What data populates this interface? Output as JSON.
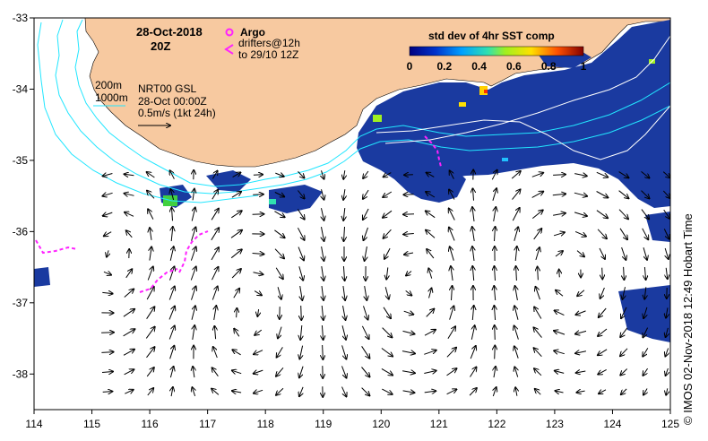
{
  "date": "28-Oct-2018",
  "time": "20Z",
  "legend_argo": "Argo",
  "legend_drifters_1": "drifters@12h",
  "legend_drifters_2": "to 29/10 12Z",
  "contour_200": "200m",
  "contour_1000": "1000m",
  "product": "NRT00 GSL",
  "product_time": "28-Oct 00:00Z",
  "vector_scale": "0.5m/s (1kt 24h)",
  "colorbar": {
    "title": "std dev of 4hr SST comp",
    "ticks": [
      "0",
      "0.2",
      "0.4",
      "0.6",
      "0.8",
      "1"
    ],
    "range": [
      0,
      1
    ]
  },
  "credit": "© IMOS 02-Nov-2018 12:49 Hobart Time",
  "axes": {
    "x_ticks": [
      "114",
      "115",
      "116",
      "117",
      "118",
      "119",
      "120",
      "121",
      "122",
      "123",
      "124",
      "125"
    ],
    "y_ticks": [
      "-33",
      "-34",
      "-35",
      "-36",
      "-37",
      "-38"
    ],
    "lon_range": [
      114,
      125
    ],
    "lat_range": [
      -38.5,
      -33
    ]
  },
  "colors": {
    "land": "#f7c9a0",
    "sst": "#1a3aa0",
    "contour": "#22e6ff",
    "drifter": "#ff22ff"
  }
}
